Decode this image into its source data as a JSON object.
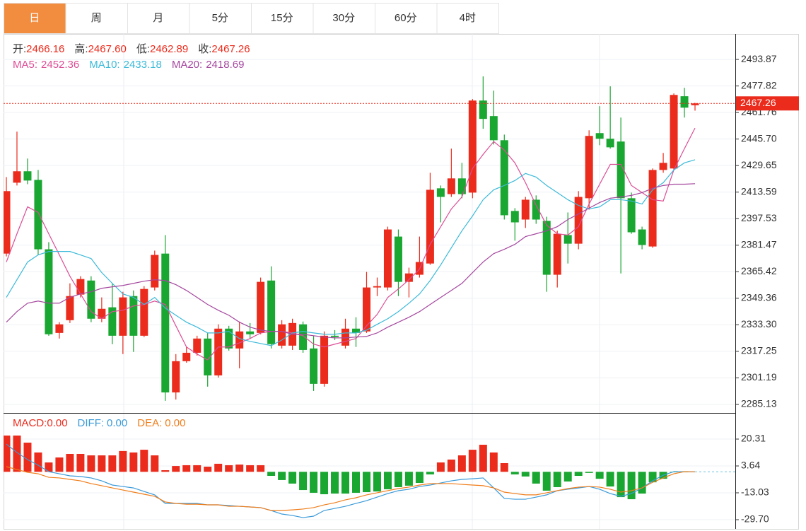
{
  "tabs": [
    {
      "label": "日",
      "active": true
    },
    {
      "label": "周",
      "active": false
    },
    {
      "label": "月",
      "active": false
    },
    {
      "label": "5分",
      "active": false
    },
    {
      "label": "15分",
      "active": false
    },
    {
      "label": "30分",
      "active": false
    },
    {
      "label": "60分",
      "active": false
    },
    {
      "label": "4时",
      "active": false
    }
  ],
  "chart_data": [
    {
      "type": "candlestick",
      "up_color": "#eb2b1c",
      "down_color": "#19a631",
      "grid": true,
      "ylim": [
        2280,
        2509.3
      ],
      "yticks": [
        2493.87,
        2477.82,
        2461.76,
        {
          "value": 2445.7,
          "label": "2445.70"
        },
        2429.65,
        2413.59,
        2397.53,
        2381.47,
        2365.42,
        2349.36,
        {
          "value": 2333.3,
          "label": "2333.30"
        },
        2317.25,
        2301.19,
        2285.13
      ],
      "last_price": 2467.26,
      "readout": [
        {
          "label": "开:",
          "value": "2466.16"
        },
        {
          "label": "高:",
          "value": "2467.60"
        },
        {
          "label": "低:",
          "value": "2462.89"
        },
        {
          "label": "收:",
          "value": "2467.26"
        }
      ],
      "open": [
        2376.4,
        2419.3,
        2426.2,
        2421.0,
        2379.0,
        2328.4,
        2336.1,
        2351.6,
        2360.1,
        2337.0,
        2343.9,
        2326.7,
        2350.7,
        2326.7,
        2355.9,
        2376.4,
        2292.4,
        2311.3,
        2316.4,
        2325.0,
        2302.7,
        2331.0,
        2319.0,
        2329.3,
        2328.4,
        2360.1,
        2320.7,
        2320.7,
        2333.6,
        2319.0,
        2297.6,
        2326.7,
        2320.7,
        2331.0,
        2329.3,
        2355.9,
        2355.9,
        2386.7,
        2359.3,
        2363.6,
        2370.4,
        2415.9,
        2412.4,
        2421.9,
        2413.3,
        2469.0,
        2459.6,
        2445.0,
        2402.2,
        2397.0,
        2409.0,
        2396.2,
        2363.6,
        2387.6,
        2382.4,
        2409.9,
        2449.3,
        2445.9,
        2444.2,
        2409.9,
        2391.0,
        2380.7,
        2427.0,
        2427.9,
        2471.6,
        2466.16
      ],
      "high": [
        2422.7,
        2450.2,
        2433.9,
        2427.0,
        2383.3,
        2334.9,
        2358.4,
        2362.7,
        2362.7,
        2349.9,
        2358.4,
        2353.3,
        2354.1,
        2356.7,
        2378.2,
        2387.6,
        2315.6,
        2319.9,
        2326.7,
        2328.4,
        2333.6,
        2332.7,
        2335.3,
        2334.4,
        2361.9,
        2368.7,
        2336.1,
        2337.0,
        2335.3,
        2326.7,
        2329.3,
        2330.1,
        2337.0,
        2337.9,
        2365.3,
        2361.9,
        2392.7,
        2391.0,
        2367.9,
        2386.7,
        2425.3,
        2417.6,
        2439.9,
        2431.3,
        2469.9,
        2483.6,
        2475.0,
        2448.4,
        2403.9,
        2410.7,
        2411.6,
        2398.7,
        2390.2,
        2401.3,
        2414.2,
        2451.0,
        2465.6,
        2477.6,
        2458.7,
        2413.3,
        2392.7,
        2427.9,
        2437.3,
        2473.3,
        2476.7,
        2467.6
      ],
      "low": [
        2374.7,
        2417.6,
        2418.4,
        2375.6,
        2326.7,
        2325.0,
        2334.4,
        2349.9,
        2334.9,
        2334.9,
        2321.6,
        2315.6,
        2316.9,
        2325.9,
        2354.1,
        2287.3,
        2288.1,
        2310.4,
        2314.7,
        2295.9,
        2301.4,
        2317.7,
        2307.0,
        2325.0,
        2327.6,
        2319.0,
        2319.0,
        2318.1,
        2316.4,
        2293.3,
        2295.9,
        2324.1,
        2319.0,
        2319.9,
        2328.4,
        2350.7,
        2354.1,
        2350.7,
        2349.9,
        2361.9,
        2369.6,
        2395.3,
        2410.7,
        2409.9,
        2409.9,
        2451.9,
        2442.4,
        2397.0,
        2384.2,
        2391.9,
        2394.4,
        2353.3,
        2355.9,
        2370.4,
        2379.0,
        2403.0,
        2442.0,
        2439.9,
        2364.4,
        2388.4,
        2379.0,
        2379.9,
        2425.3,
        2427.0,
        2458.7,
        2462.89
      ],
      "close": [
        2414.2,
        2426.2,
        2420.6,
        2379.0,
        2327.6,
        2333.6,
        2350.7,
        2361.0,
        2337.0,
        2343.0,
        2326.7,
        2349.9,
        2326.7,
        2355.0,
        2375.6,
        2292.4,
        2311.3,
        2316.4,
        2325.0,
        2302.7,
        2331.0,
        2319.0,
        2329.3,
        2327.6,
        2359.3,
        2321.6,
        2333.6,
        2334.4,
        2318.1,
        2297.6,
        2326.7,
        2325.9,
        2331.0,
        2328.4,
        2355.9,
        2356.7,
        2391.0,
        2359.3,
        2364.4,
        2371.3,
        2415.0,
        2410.7,
        2421.9,
        2412.4,
        2469.0,
        2457.9,
        2445.0,
        2399.6,
        2395.3,
        2409.0,
        2397.0,
        2363.6,
        2388.4,
        2382.4,
        2410.7,
        2447.6,
        2445.9,
        2440.7,
        2409.9,
        2389.3,
        2381.6,
        2427.0,
        2431.3,
        2472.4,
        2464.7,
        2467.26
      ],
      "series": [
        {
          "name": "MA5:",
          "color": "#dc4d95",
          "values": [
            2371.3,
            2388.4,
            2404.7,
            2401.3,
            2388.4,
            2375.6,
            2362.7,
            2352.0,
            2341.3,
            2337.0,
            2341.3,
            2342.1,
            2344.7,
            2345.6,
            2347.7,
            2345.6,
            2332.7,
            2319.9,
            2315.6,
            2312.1,
            2319.9,
            2319.9,
            2322.4,
            2325.0,
            2328.4,
            2329.3,
            2329.3,
            2328.4,
            2326.7,
            2321.6,
            2319.9,
            2321.6,
            2323.3,
            2325.0,
            2332.7,
            2339.6,
            2349.9,
            2355.0,
            2360.6,
            2367.0,
            2382.0,
            2392.7,
            2403.4,
            2410.7,
            2427.9,
            2436.4,
            2444.2,
            2439.0,
            2431.3,
            2419.3,
            2405.6,
            2393.6,
            2388.4,
            2387.6,
            2392.7,
            2406.4,
            2418.4,
            2430.4,
            2430.4,
            2417.6,
            2413.3,
            2409.0,
            2408.2,
            2427.0,
            2439.9,
            2452.36
          ]
        },
        {
          "name": "MA10:",
          "color": "#3cbad9",
          "values": [
            2349.9,
            2360.6,
            2371.3,
            2375.6,
            2377.7,
            2377.7,
            2377.7,
            2375.6,
            2373.4,
            2364.9,
            2358.4,
            2352.0,
            2349.9,
            2345.6,
            2349.9,
            2343.4,
            2339.1,
            2334.9,
            2331.9,
            2328.4,
            2328.4,
            2329.3,
            2325.0,
            2323.3,
            2322.0,
            2320.7,
            2324.1,
            2328.4,
            2329.3,
            2328.4,
            2327.6,
            2327.6,
            2328.4,
            2328.4,
            2330.1,
            2333.6,
            2337.0,
            2341.3,
            2346.4,
            2352.0,
            2360.1,
            2369.6,
            2379.9,
            2390.2,
            2399.2,
            2409.0,
            2415.0,
            2417.6,
            2420.6,
            2424.9,
            2422.7,
            2417.6,
            2413.3,
            2409.0,
            2405.6,
            2403.4,
            2404.7,
            2409.0,
            2409.0,
            2408.2,
            2406.4,
            2415.0,
            2419.3,
            2427.0,
            2431.3,
            2433.18
          ]
        },
        {
          "name": "MA20:",
          "color": "#a5489f",
          "values": [
            2334.9,
            2341.3,
            2346.4,
            2347.7,
            2346.4,
            2346.4,
            2349.9,
            2352.0,
            2353.3,
            2355.4,
            2356.3,
            2357.1,
            2358.4,
            2359.7,
            2360.6,
            2360.1,
            2357.6,
            2354.1,
            2349.9,
            2345.6,
            2342.1,
            2339.1,
            2334.9,
            2331.9,
            2330.1,
            2329.3,
            2329.3,
            2327.6,
            2327.6,
            2326.7,
            2325.9,
            2325.4,
            2325.4,
            2325.9,
            2326.3,
            2328.4,
            2331.9,
            2334.9,
            2337.9,
            2341.3,
            2345.6,
            2349.9,
            2354.1,
            2358.4,
            2364.9,
            2371.3,
            2376.4,
            2379.0,
            2382.0,
            2386.7,
            2388.4,
            2390.2,
            2392.7,
            2397.0,
            2400.4,
            2403.9,
            2407.3,
            2409.9,
            2410.7,
            2411.6,
            2413.3,
            2415.9,
            2417.6,
            2418.4,
            2418.4,
            2418.69
          ]
        }
      ]
    },
    {
      "type": "macd",
      "up_color": "#eb2b1c",
      "down_color": "#19a631",
      "grid": true,
      "ylim": [
        -35.4,
        36.1
      ],
      "yticks": [
        20.31,
        3.64,
        -13.03,
        {
          "value": -29.7,
          "label": "-29.70"
        }
      ],
      "histogram": {
        "name": "MACD:",
        "last_label": "0.00",
        "values": [
          22.5,
          22.5,
          18.1,
          12.0,
          5.8,
          8.9,
          11.1,
          11.1,
          10.2,
          10.2,
          10.2,
          12.9,
          12.0,
          13.7,
          10.2,
          1.0,
          3.6,
          4.1,
          4.1,
          3.2,
          5.0,
          4.1,
          4.5,
          4.1,
          4.1,
          -2.5,
          -5.1,
          -7.3,
          -11.3,
          -13.0,
          -13.9,
          -13.5,
          -13.5,
          -13.0,
          -12.6,
          -12.2,
          -10.8,
          -9.5,
          -8.6,
          -6.9,
          -1.6,
          5.8,
          7.6,
          10.2,
          13.7,
          16.8,
          12.0,
          5.4,
          -1.6,
          -2.9,
          -7.3,
          -11.7,
          -9.5,
          -6.0,
          -2.5,
          -0.7,
          -4.3,
          -9.1,
          -15.7,
          -17.0,
          -13.5,
          -6.5,
          -4.3,
          -0.3,
          -0.3,
          0
        ]
      },
      "series": [
        {
          "name": "DIFF:",
          "last_label": "0.00",
          "color": "#3a9ad9",
          "values": [
            17.2,
            12.0,
            7.6,
            4.1,
            0.1,
            -1.2,
            -2.5,
            -2.9,
            -3.8,
            -5.6,
            -8.2,
            -9.1,
            -10.0,
            -12.2,
            -14.3,
            -19.6,
            -19.6,
            -19.6,
            -19.6,
            -20.5,
            -20.5,
            -20.9,
            -21.4,
            -21.8,
            -22.2,
            -24.0,
            -26.2,
            -27.1,
            -28.4,
            -27.5,
            -24.0,
            -22.7,
            -21.4,
            -19.6,
            -17.9,
            -15.7,
            -13.5,
            -11.7,
            -10.8,
            -9.1,
            -8.2,
            -6.9,
            -5.6,
            -4.7,
            -4.3,
            -3.8,
            -10.0,
            -16.5,
            -17.0,
            -17.0,
            -15.7,
            -14.3,
            -11.7,
            -10.8,
            -10.0,
            -9.1,
            -10.8,
            -13.5,
            -15.2,
            -13.5,
            -10.0,
            -5.6,
            -2.1,
            0.1,
            0.1,
            0
          ]
        },
        {
          "name": "DEA:",
          "last_label": "0.00",
          "color": "#f07d1a",
          "values": [
            3.2,
            1.4,
            -0.3,
            -1.2,
            -3.4,
            -3.8,
            -4.7,
            -5.6,
            -7.3,
            -8.6,
            -10.0,
            -11.3,
            -12.6,
            -13.9,
            -15.2,
            -18.7,
            -19.6,
            -20.1,
            -20.1,
            -20.5,
            -20.5,
            -21.4,
            -21.4,
            -21.8,
            -22.2,
            -24.0,
            -24.0,
            -23.6,
            -23.1,
            -22.2,
            -20.5,
            -19.2,
            -17.4,
            -16.1,
            -14.3,
            -13.0,
            -11.7,
            -10.4,
            -9.5,
            -8.2,
            -7.3,
            -7.3,
            -7.3,
            -7.8,
            -8.2,
            -8.6,
            -10.0,
            -12.6,
            -13.5,
            -14.3,
            -14.3,
            -13.0,
            -11.7,
            -10.4,
            -9.5,
            -9.1,
            -9.5,
            -10.8,
            -12.6,
            -11.7,
            -10.0,
            -6.5,
            -3.8,
            -1.2,
            0.1,
            0
          ]
        }
      ]
    }
  ]
}
